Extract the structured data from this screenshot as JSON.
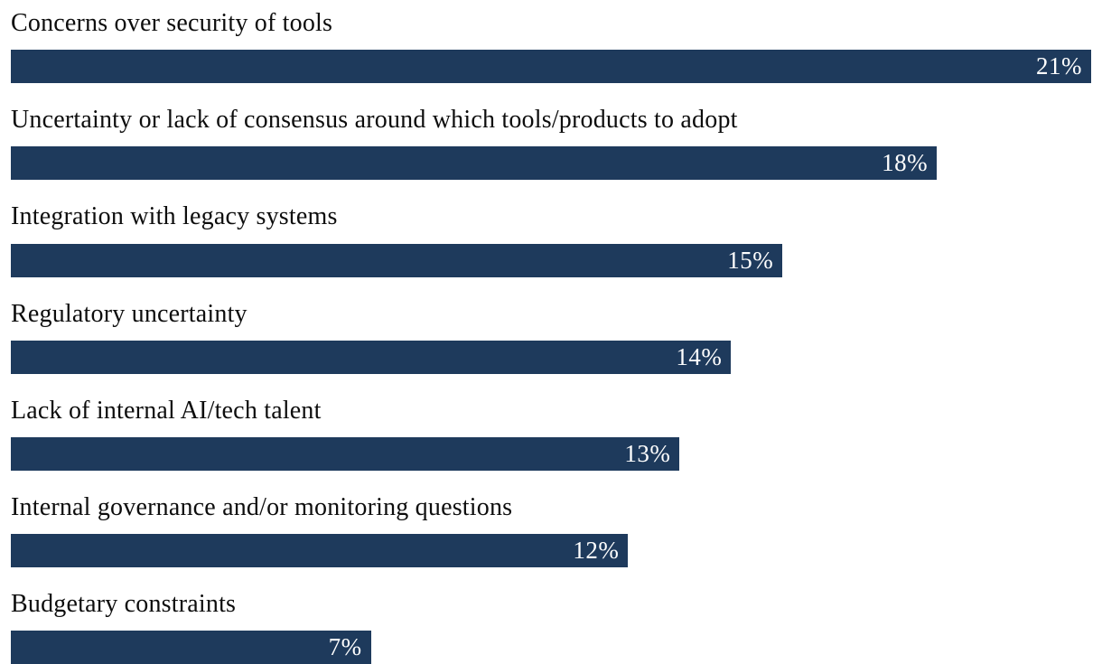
{
  "chart_data": {
    "type": "bar",
    "orientation": "horizontal",
    "title": "",
    "xlabel": "",
    "ylabel": "",
    "xlim": [
      0,
      21
    ],
    "grid": false,
    "bar_color": "#1e3a5c",
    "value_label_color": "#ffffff",
    "categories": [
      "Concerns over security of tools",
      "Uncertainty or lack of consensus around which tools/products to adopt",
      "Integration with legacy systems",
      "Regulatory uncertainty",
      "Lack of internal AI/tech talent",
      "Internal governance and/or monitoring questions",
      "Budgetary constraints"
    ],
    "values": [
      21,
      18,
      15,
      14,
      13,
      12,
      7
    ],
    "value_labels": [
      "21%",
      "18%",
      "15%",
      "14%",
      "13%",
      "12%",
      "7%"
    ]
  }
}
